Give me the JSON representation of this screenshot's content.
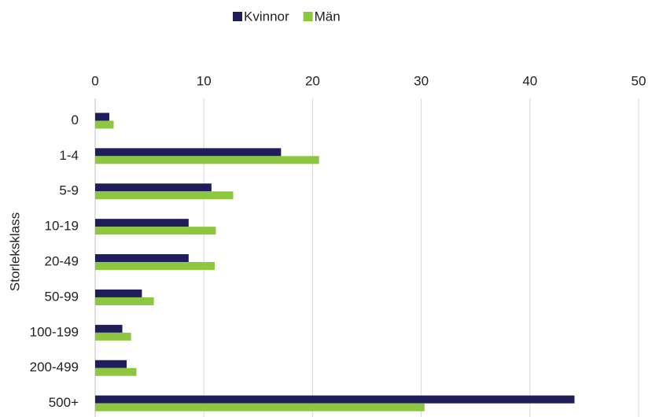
{
  "chart_data": {
    "type": "hbar",
    "y_label": "Storleksklass",
    "categories": [
      "0",
      "1-4",
      "5-9",
      "10-19",
      "20-49",
      "50-99",
      "100-199",
      "200-499",
      "500+"
    ],
    "series": [
      {
        "name": "Kvinnor",
        "color": "#1f1d5a",
        "values": [
          1.3,
          17.1,
          10.7,
          8.6,
          8.6,
          4.3,
          2.5,
          2.9,
          44.1
        ]
      },
      {
        "name": "Män",
        "color": "#8dc63f",
        "values": [
          1.7,
          20.6,
          12.7,
          11.1,
          11.0,
          5.4,
          3.3,
          3.8,
          30.3
        ]
      }
    ],
    "xlim": [
      0,
      50
    ],
    "xticks": [
      0,
      10,
      20,
      30,
      40,
      50
    ],
    "grid": true,
    "legend": "top"
  }
}
